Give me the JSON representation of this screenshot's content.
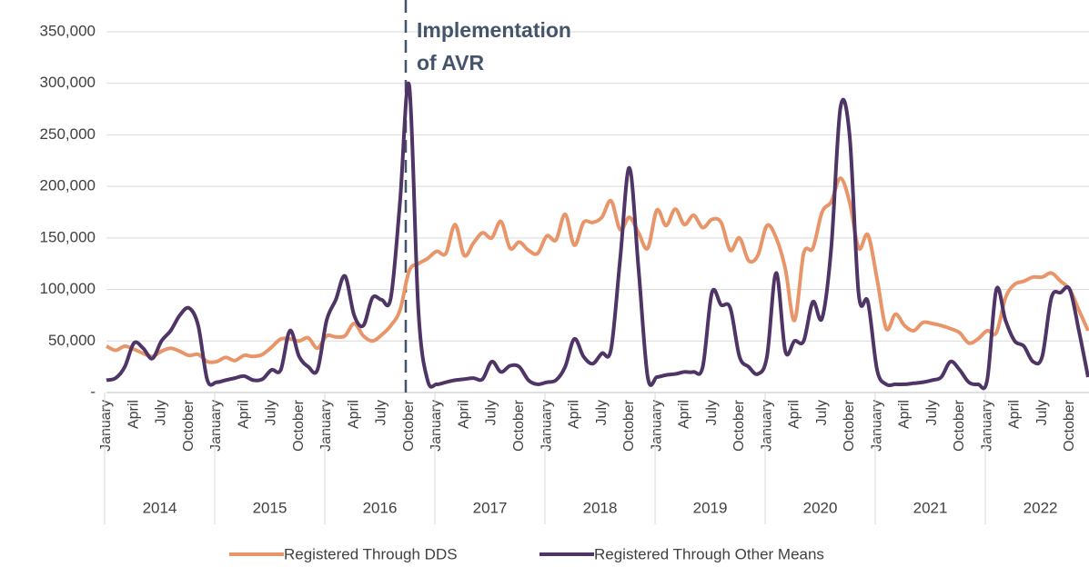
{
  "chart_data": {
    "type": "line",
    "annotation": [
      "Implementation",
      "of AVR"
    ],
    "categories": [
      "January",
      null,
      null,
      "April",
      null,
      null,
      "July",
      null,
      null,
      "October",
      null,
      null,
      "January",
      null,
      null,
      "April",
      null,
      null,
      "July",
      null,
      null,
      "October",
      null,
      null,
      "January",
      null,
      null,
      "April",
      null,
      null,
      "July",
      null,
      null,
      "October",
      null,
      null,
      "January",
      null,
      null,
      "April",
      null,
      null,
      "July",
      null,
      null,
      "October",
      null,
      null,
      "January",
      null,
      null,
      "April",
      null,
      null,
      "July",
      null,
      null,
      "October",
      null,
      null,
      "January",
      null,
      null,
      "April",
      null,
      null,
      "July",
      null,
      null,
      "October",
      null,
      null,
      "January",
      null,
      null,
      "April",
      null,
      null,
      "July",
      null,
      null,
      "October",
      null,
      null,
      "January",
      null,
      null,
      "April",
      null,
      null,
      "July",
      null,
      null,
      "October",
      null,
      null,
      "January",
      null,
      null,
      "April",
      null,
      null,
      "July",
      null,
      null,
      "October",
      null,
      null
    ],
    "years": [
      "2014",
      "2015",
      "2016",
      "2017",
      "2018",
      "2019",
      "2020",
      "2021",
      "2022"
    ],
    "series": [
      {
        "name": "Registered Through DDS",
        "color": "#e8956a",
        "values": [
          45000,
          41000,
          45000,
          42000,
          38000,
          35000,
          40000,
          43000,
          40000,
          36000,
          37000,
          30000,
          30000,
          34000,
          31000,
          36000,
          35000,
          37000,
          44000,
          52000,
          52000,
          50000,
          53000,
          43000,
          55000,
          54000,
          55000,
          67000,
          55000,
          50000,
          56000,
          65000,
          80000,
          118000,
          125000,
          130000,
          137000,
          135000,
          163000,
          133000,
          145000,
          155000,
          150000,
          166000,
          140000,
          146000,
          138000,
          135000,
          152000,
          148000,
          173000,
          143000,
          165000,
          165000,
          170000,
          186000,
          158000,
          170000,
          155000,
          140000,
          177000,
          162000,
          178000,
          163000,
          172000,
          160000,
          168000,
          165000,
          138000,
          150000,
          128000,
          133000,
          162000,
          150000,
          120000,
          70000,
          135000,
          140000,
          175000,
          185000,
          208000,
          185000,
          140000,
          153000,
          110000,
          62000,
          76000,
          65000,
          60000,
          68000,
          67000,
          65000,
          62000,
          58000,
          48000,
          52000,
          60000,
          58000,
          92000,
          105000,
          108000,
          112000,
          112000,
          116000,
          108000,
          100000,
          80000,
          60000
        ]
      },
      {
        "name": "Registered Through Other Means",
        "color": "#4f3466",
        "values": [
          12000,
          14000,
          25000,
          48000,
          43000,
          33000,
          50000,
          60000,
          75000,
          82000,
          65000,
          12000,
          10000,
          12000,
          14000,
          16000,
          12000,
          13000,
          22000,
          22000,
          60000,
          35000,
          25000,
          22000,
          70000,
          90000,
          113000,
          75000,
          65000,
          92000,
          90000,
          92000,
          185000,
          298000,
          80000,
          12000,
          8000,
          10000,
          12000,
          13000,
          14000,
          13000,
          30000,
          20000,
          26000,
          25000,
          12000,
          8000,
          10000,
          12000,
          25000,
          52000,
          35000,
          28000,
          38000,
          42000,
          130000,
          218000,
          120000,
          15000,
          15000,
          17000,
          18000,
          20000,
          20000,
          25000,
          97000,
          85000,
          82000,
          35000,
          25000,
          18000,
          35000,
          116000,
          40000,
          50000,
          50000,
          88000,
          72000,
          140000,
          276000,
          250000,
          95000,
          88000,
          22000,
          8000,
          8000,
          8000,
          9000,
          10000,
          12000,
          15000,
          30000,
          22000,
          10000,
          8000,
          12000,
          100000,
          70000,
          50000,
          45000,
          30000,
          35000,
          92000,
          97000,
          100000,
          60000,
          15000
        ]
      }
    ],
    "ylim": [
      0,
      350000
    ],
    "yticks": [
      {
        "value": 0,
        "label": "-"
      },
      {
        "value": 50000,
        "label": "50,000"
      },
      {
        "value": 100000,
        "label": "100,000"
      },
      {
        "value": 150000,
        "label": "150,000"
      },
      {
        "value": 200000,
        "label": "200,000"
      },
      {
        "value": 250000,
        "label": "250,000"
      },
      {
        "value": 300000,
        "label": "300,000"
      },
      {
        "value": 350000,
        "label": "350,000"
      }
    ],
    "grid": true,
    "legend": "bottom"
  }
}
